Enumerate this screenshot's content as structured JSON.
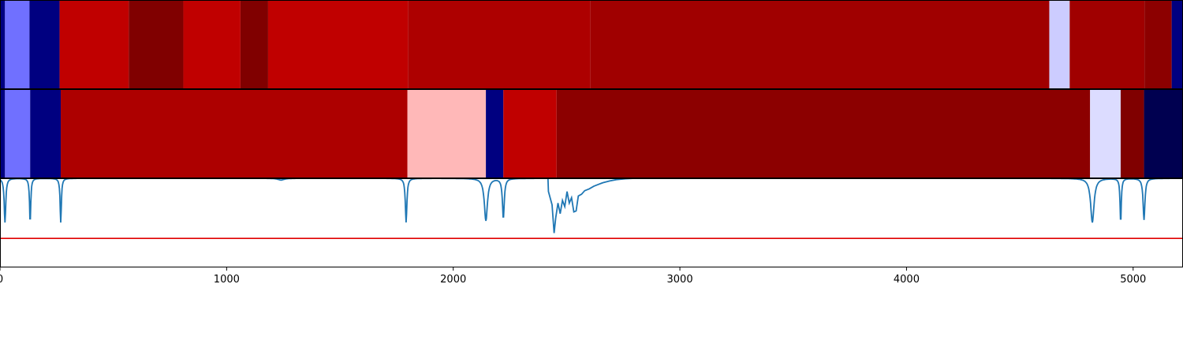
{
  "chart_data": [
    {
      "type": "heatmap",
      "xlim": [
        0,
        5220
      ],
      "segments": [
        {
          "start": 0,
          "end": 22,
          "color": "#000080"
        },
        {
          "start": 22,
          "end": 130,
          "color": "#7070ff"
        },
        {
          "start": 130,
          "end": 263,
          "color": "#000080"
        },
        {
          "start": 263,
          "end": 568,
          "color": "#c00000"
        },
        {
          "start": 568,
          "end": 809,
          "color": "#800000"
        },
        {
          "start": 809,
          "end": 1061,
          "color": "#c00000"
        },
        {
          "start": 1061,
          "end": 1183,
          "color": "#800000"
        },
        {
          "start": 1183,
          "end": 1800,
          "color": "#c00000"
        },
        {
          "start": 1800,
          "end": 2604,
          "color": "#ad0000"
        },
        {
          "start": 2604,
          "end": 4630,
          "color": "#a00000"
        },
        {
          "start": 4630,
          "end": 4720,
          "color": "#ccccff"
        },
        {
          "start": 4720,
          "end": 5050,
          "color": "#a00000"
        },
        {
          "start": 5050,
          "end": 5170,
          "color": "#8c0000"
        },
        {
          "start": 5170,
          "end": 5220,
          "color": "#000080"
        }
      ]
    },
    {
      "type": "heatmap",
      "xlim": [
        0,
        5220
      ],
      "segments": [
        {
          "start": 0,
          "end": 22,
          "color": "#000080"
        },
        {
          "start": 22,
          "end": 133,
          "color": "#7070ff"
        },
        {
          "start": 133,
          "end": 268,
          "color": "#000080"
        },
        {
          "start": 268,
          "end": 1798,
          "color": "#ad0000"
        },
        {
          "start": 1798,
          "end": 2144,
          "color": "#ffb8b8"
        },
        {
          "start": 2144,
          "end": 2221,
          "color": "#000080"
        },
        {
          "start": 2221,
          "end": 2456,
          "color": "#c00000"
        },
        {
          "start": 2456,
          "end": 4810,
          "color": "#8c0000"
        },
        {
          "start": 4810,
          "end": 4945,
          "color": "#dcdcff"
        },
        {
          "start": 4945,
          "end": 5048,
          "color": "#800000"
        },
        {
          "start": 5048,
          "end": 5220,
          "color": "#000050"
        }
      ]
    },
    {
      "type": "line",
      "xlim": [
        0,
        5220
      ],
      "ylim": [
        0,
        1
      ],
      "x_ticks": [
        0,
        1000,
        2000,
        3000,
        4000,
        5000
      ],
      "x_tick_labels": [
        "0",
        "1000",
        "2000",
        "3000",
        "4000",
        "5000"
      ],
      "threshold": {
        "value": 0.32,
        "color": "#e00000"
      },
      "series": [
        {
          "color": "#1f77b4",
          "dips": [
            {
              "x": 22,
              "depth": 0.5,
              "width": 10
            },
            {
              "x": 133,
              "depth": 0.5,
              "width": 8
            },
            {
              "x": 268,
              "depth": 0.5,
              "width": 8
            },
            {
              "x": 1240,
              "depth": 0.02,
              "width": 40
            },
            {
              "x": 1792,
              "depth": 0.5,
              "width": 10
            },
            {
              "x": 2144,
              "depth": 0.48,
              "width": 20
            },
            {
              "x": 2221,
              "depth": 0.45,
              "width": 12
            },
            {
              "x": 4820,
              "depth": 0.5,
              "width": 22
            },
            {
              "x": 4945,
              "depth": 0.5,
              "width": 8
            },
            {
              "x": 5048,
              "depth": 0.47,
              "width": 12
            }
          ],
          "noisy_region": [
            {
              "x": 2420,
              "y": 0.85
            },
            {
              "x": 2436,
              "y": 0.7
            },
            {
              "x": 2445,
              "y": 0.38
            },
            {
              "x": 2452,
              "y": 0.55
            },
            {
              "x": 2462,
              "y": 0.72
            },
            {
              "x": 2472,
              "y": 0.6
            },
            {
              "x": 2482,
              "y": 0.75
            },
            {
              "x": 2492,
              "y": 0.68
            },
            {
              "x": 2502,
              "y": 0.85
            },
            {
              "x": 2512,
              "y": 0.72
            },
            {
              "x": 2522,
              "y": 0.78
            },
            {
              "x": 2532,
              "y": 0.62
            },
            {
              "x": 2542,
              "y": 0.63
            },
            {
              "x": 2552,
              "y": 0.8
            },
            {
              "x": 2566,
              "y": 0.82
            },
            {
              "x": 2580,
              "y": 0.86
            },
            {
              "x": 2600,
              "y": 0.88
            },
            {
              "x": 2620,
              "y": 0.91
            },
            {
              "x": 2640,
              "y": 0.93
            },
            {
              "x": 2660,
              "y": 0.95
            },
            {
              "x": 2690,
              "y": 0.97
            },
            {
              "x": 2720,
              "y": 0.985
            },
            {
              "x": 2760,
              "y": 0.995
            },
            {
              "x": 2800,
              "y": 1.0
            }
          ]
        }
      ]
    }
  ]
}
